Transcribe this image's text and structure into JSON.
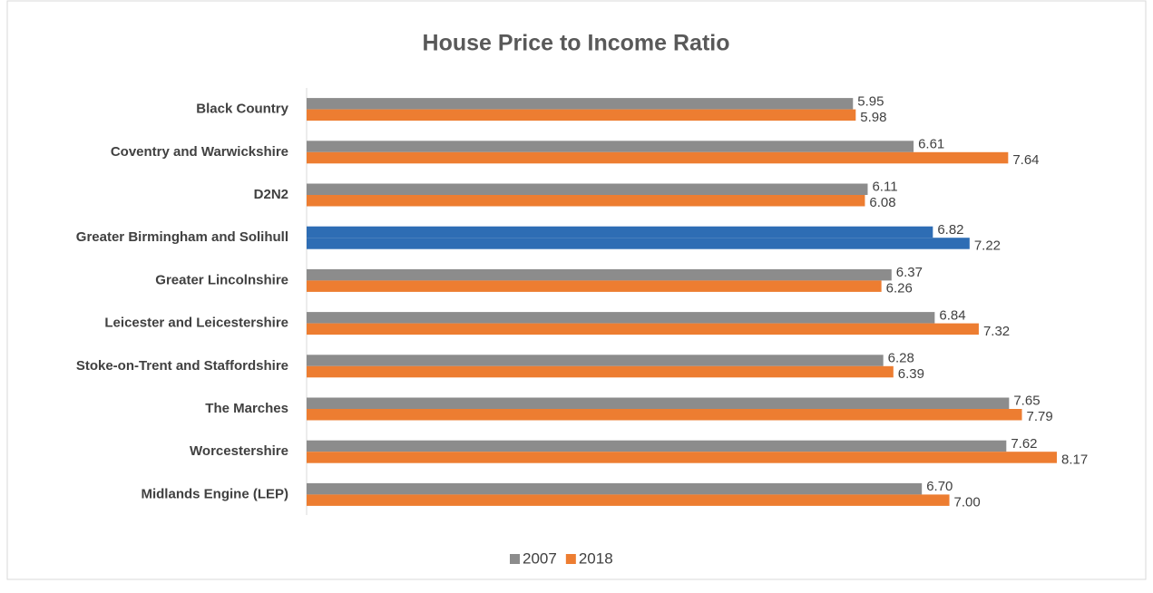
{
  "chart_data": {
    "type": "bar",
    "orientation": "horizontal",
    "title": "House Price to Income Ratio",
    "categories": [
      "Black Country",
      "Coventry and Warwickshire",
      "D2N2",
      "Greater Birmingham and Solihull",
      "Greater Lincolnshire",
      "Leicester and Leicestershire",
      "Stoke-on-Trent and Staffordshire",
      "The Marches",
      "Worcestershire",
      "Midlands Engine (LEP)"
    ],
    "series": [
      {
        "name": "2007",
        "color": "#8c8c8c",
        "colors": [
          "#8c8c8c",
          "#8c8c8c",
          "#8c8c8c",
          "#2e6db4",
          "#8c8c8c",
          "#8c8c8c",
          "#8c8c8c",
          "#8c8c8c",
          "#8c8c8c",
          "#8c8c8c"
        ],
        "values": [
          5.95,
          6.61,
          6.11,
          6.82,
          6.37,
          6.84,
          6.28,
          7.65,
          7.62,
          6.7
        ],
        "value_labels": [
          "5.95",
          "6.61",
          "6.11",
          "6.82",
          "6.37",
          "6.84",
          "6.28",
          "7.65",
          "7.62",
          "6.70"
        ]
      },
      {
        "name": "2018",
        "color": "#ed7d31",
        "colors": [
          "#ed7d31",
          "#ed7d31",
          "#ed7d31",
          "#2e6db4",
          "#ed7d31",
          "#ed7d31",
          "#ed7d31",
          "#ed7d31",
          "#ed7d31",
          "#ed7d31"
        ],
        "values": [
          5.98,
          7.64,
          6.08,
          7.22,
          6.26,
          7.32,
          6.39,
          7.79,
          8.17,
          7
        ],
        "value_labels": [
          "5.98",
          "7.64",
          "6.08",
          "7.22",
          "6.26",
          "7.32",
          "6.39",
          "7.79",
          "8.17",
          "7.00"
        ]
      }
    ],
    "xlim": [
      0,
      9
    ],
    "legend": "bottom"
  }
}
